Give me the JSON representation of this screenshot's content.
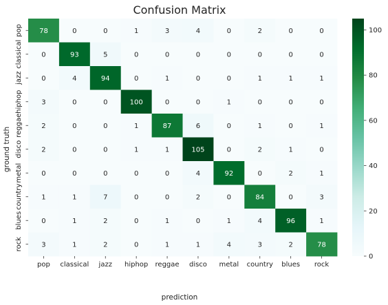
{
  "chart_data": {
    "type": "heatmap",
    "title": "Confusion Matrix",
    "xlabel": "prediction",
    "ylabel": "ground truth",
    "x_categories": [
      "pop",
      "classical",
      "jazz",
      "hiphop",
      "reggae",
      "disco",
      "metal",
      "country",
      "blues",
      "rock"
    ],
    "y_categories": [
      "pop",
      "classical",
      "jazz",
      "hiphop",
      "reggae",
      "disco",
      "metal",
      "country",
      "blues",
      "rock"
    ],
    "values": [
      [
        78,
        0,
        0,
        1,
        3,
        4,
        0,
        2,
        0,
        0
      ],
      [
        0,
        93,
        5,
        0,
        0,
        0,
        0,
        0,
        0,
        0
      ],
      [
        0,
        4,
        94,
        0,
        1,
        0,
        0,
        1,
        1,
        1
      ],
      [
        3,
        0,
        0,
        100,
        0,
        0,
        1,
        0,
        0,
        0
      ],
      [
        2,
        0,
        0,
        1,
        87,
        6,
        0,
        1,
        0,
        1
      ],
      [
        2,
        0,
        0,
        1,
        1,
        105,
        0,
        2,
        1,
        0
      ],
      [
        0,
        0,
        0,
        0,
        0,
        4,
        92,
        0,
        2,
        1
      ],
      [
        1,
        1,
        7,
        0,
        0,
        2,
        0,
        84,
        0,
        3
      ],
      [
        0,
        1,
        2,
        0,
        1,
        0,
        1,
        4,
        96,
        1
      ],
      [
        3,
        1,
        2,
        0,
        1,
        1,
        4,
        3,
        2,
        78
      ]
    ],
    "colorbar": {
      "ticks": [
        0,
        20,
        40,
        60,
        80,
        100
      ],
      "range": [
        0,
        105
      ],
      "colormap": "BuGn",
      "low_color": "#f7fcfd",
      "high_color": "#00441b"
    },
    "annotations": true,
    "grid": false
  }
}
